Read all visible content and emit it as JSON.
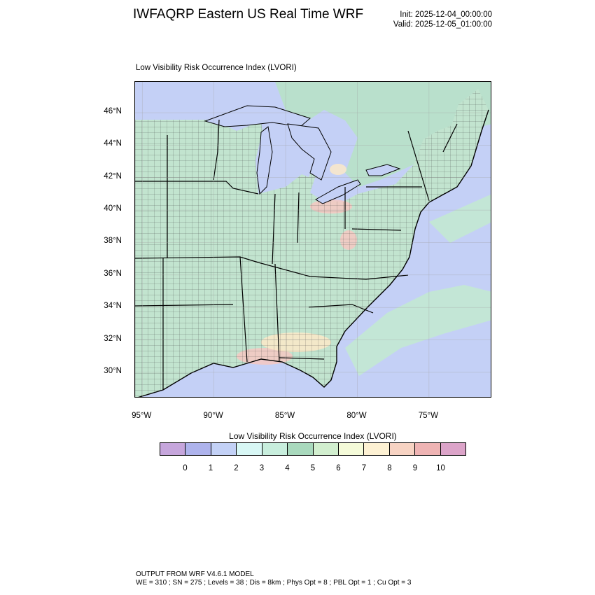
{
  "header": {
    "title": "IWFAQRP Eastern US Real Time WRF",
    "init": "Init: 2025-12-04_00:00:00",
    "valid": "Valid: 2025-12-05_01:00:00"
  },
  "map": {
    "title": "Low Visibility Risk Occurrence Index   (LVORI)",
    "lat_labels": [
      "46°N",
      "44°N",
      "42°N",
      "40°N",
      "38°N",
      "36°N",
      "34°N",
      "32°N",
      "30°N"
    ],
    "lon_labels": [
      "95°W",
      "90°W",
      "85°W",
      "80°W",
      "75°W"
    ],
    "lat_range": [
      28.4,
      47.9
    ],
    "lon_range": [
      -95.5,
      -70.6
    ],
    "field_colors": {
      "water": "#c4d0f6",
      "land_base": "#c2e4cf",
      "canada_land": "#b9e0cc",
      "ocean_shelf": "#c3e6d6",
      "high_risk": "#f6c8c2",
      "med_risk": "#fbe9c8"
    }
  },
  "legend": {
    "title": "Low Visibility Risk Occurrence Index  (LVORI)",
    "colors": [
      "#c6a6dc",
      "#aeb3ec",
      "#c3d1f6",
      "#d8f7f5",
      "#c8eedd",
      "#a9d9bd",
      "#d2efcf",
      "#f5fbd9",
      "#fdf1d3",
      "#f7d3c3",
      "#efb4b4",
      "#dca4c9"
    ],
    "ticks": [
      "0",
      "1",
      "2",
      "3",
      "4",
      "5",
      "6",
      "7",
      "8",
      "9",
      "10"
    ]
  },
  "footer": {
    "line1": "OUTPUT FROM WRF V4.6.1 MODEL",
    "line2": "WE = 310 ; SN = 275 ; Levels = 38 ; Dis = 8km ; Phys Opt = 8 ; PBL Opt = 1 ; Cu Opt = 3"
  }
}
